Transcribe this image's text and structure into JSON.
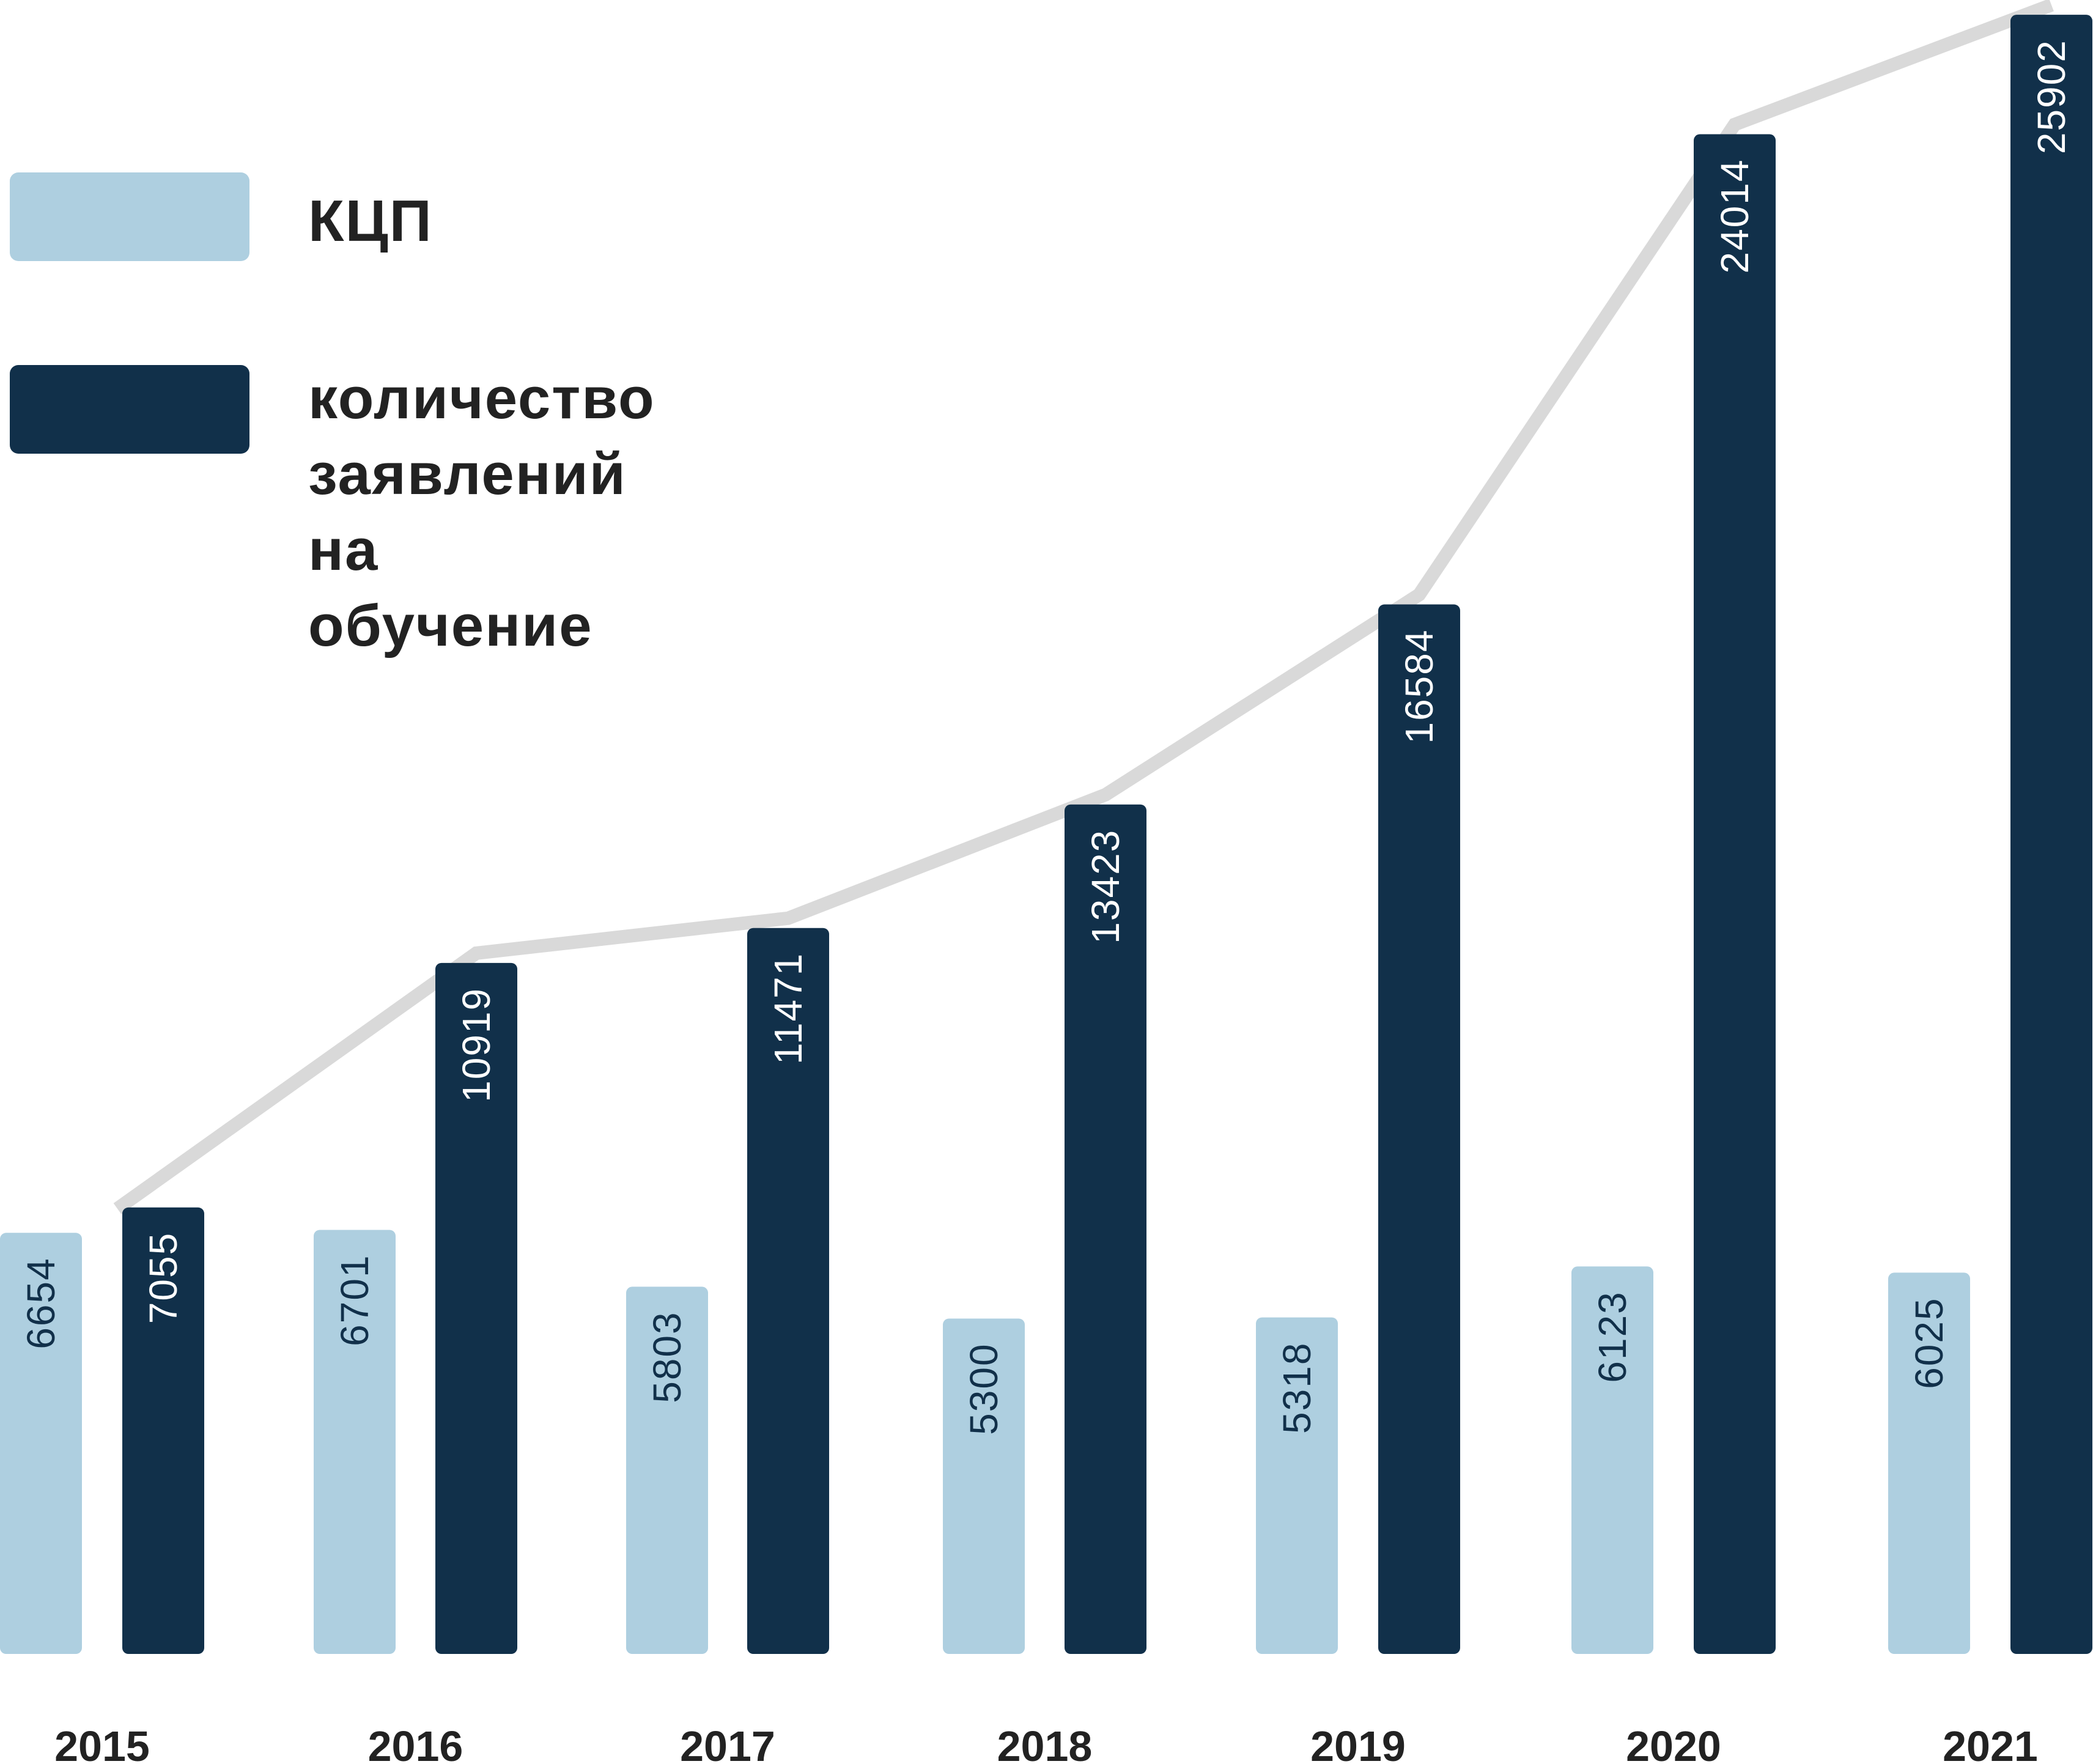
{
  "chart_data": {
    "type": "bar",
    "categories": [
      "2015",
      "2016",
      "2017",
      "2018",
      "2019",
      "2020",
      "2021"
    ],
    "series": [
      {
        "name": "КЦП",
        "values": [
          6654,
          6701,
          5803,
          5300,
          5318,
          6123,
          6025
        ],
        "color": "#aecfe0"
      },
      {
        "name": "количество\nзаявлений\nна обучение",
        "values": [
          7055,
          10919,
          11471,
          13423,
          16584,
          24014,
          25902
        ],
        "color": "#11304a"
      }
    ],
    "trend_line": {
      "follows": "количество\nзаявлений\nна обучение",
      "color": "#d9d9d9"
    },
    "ylim": [
      0,
      26000
    ],
    "grid": false,
    "legend_position": "top-left",
    "title": "",
    "xlabel": "",
    "ylabel": ""
  },
  "legend": {
    "items": [
      {
        "label": "КЦП",
        "color": "#aecfe0"
      },
      {
        "label": "количество\nзаявлений\nна обучение",
        "color": "#11304a"
      }
    ]
  }
}
